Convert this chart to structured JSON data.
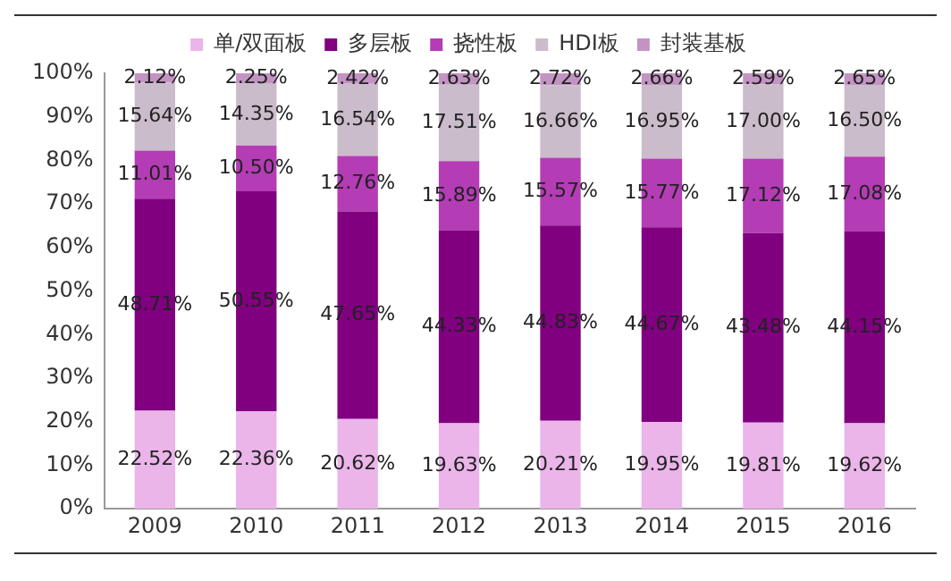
{
  "chart_data": {
    "type": "bar",
    "stacked": true,
    "categories": [
      "2009",
      "2010",
      "2011",
      "2012",
      "2013",
      "2014",
      "2015",
      "2016"
    ],
    "series": [
      {
        "name": "单/双面板",
        "color": "#ebb5ea",
        "values": [
          22.52,
          22.36,
          20.62,
          19.63,
          20.21,
          19.95,
          19.81,
          19.62
        ],
        "value_labels": [
          "22.52%",
          "22.36%",
          "20.62%",
          "19.63%",
          "20.21%",
          "19.95%",
          "19.81%",
          "19.62%"
        ]
      },
      {
        "name": "多层板",
        "color": "#800080",
        "values": [
          48.71,
          50.55,
          47.65,
          44.33,
          44.83,
          44.67,
          43.48,
          44.15
        ],
        "value_labels": [
          "48.71%",
          "50.55%",
          "47.65%",
          "44.33%",
          "44.83%",
          "44.67%",
          "43.48%",
          "44.15%"
        ]
      },
      {
        "name": "挠性板",
        "color": "#b43cb4",
        "values": [
          11.01,
          10.5,
          12.76,
          15.89,
          15.57,
          15.77,
          17.12,
          17.08
        ],
        "value_labels": [
          "11.01%",
          "10.50%",
          "12.76%",
          "15.89%",
          "15.57%",
          "15.77%",
          "17.12%",
          "17.08%"
        ]
      },
      {
        "name": "HDI板",
        "color": "#cbbccb",
        "values": [
          15.64,
          14.35,
          16.54,
          17.51,
          16.66,
          16.95,
          17.0,
          16.5
        ],
        "value_labels": [
          "15.64%",
          "14.35%",
          "16.54%",
          "17.51%",
          "16.66%",
          "16.95%",
          "17.00%",
          "16.50%"
        ]
      },
      {
        "name": "封装基板",
        "color": "#c394c3",
        "values": [
          2.12,
          2.25,
          2.42,
          2.63,
          2.72,
          2.66,
          2.59,
          2.65
        ],
        "value_labels": [
          "2.12%",
          "2.25%",
          "2.42%",
          "2.63%",
          "2.72%",
          "2.66%",
          "2.59%",
          "2.65%"
        ]
      }
    ],
    "ylim": [
      0,
      100
    ],
    "yticks": [
      {
        "value": 0,
        "label": "0%"
      },
      {
        "value": 10,
        "label": "10%"
      },
      {
        "value": 20,
        "label": "20%"
      },
      {
        "value": 30,
        "label": "30%"
      },
      {
        "value": 40,
        "label": "40%"
      },
      {
        "value": 50,
        "label": "50%"
      },
      {
        "value": 60,
        "label": "60%"
      },
      {
        "value": 70,
        "label": "70%"
      },
      {
        "value": 80,
        "label": "80%"
      },
      {
        "value": 90,
        "label": "90%"
      },
      {
        "value": 100,
        "label": "100%"
      }
    ],
    "grid": false,
    "legend": "top"
  }
}
